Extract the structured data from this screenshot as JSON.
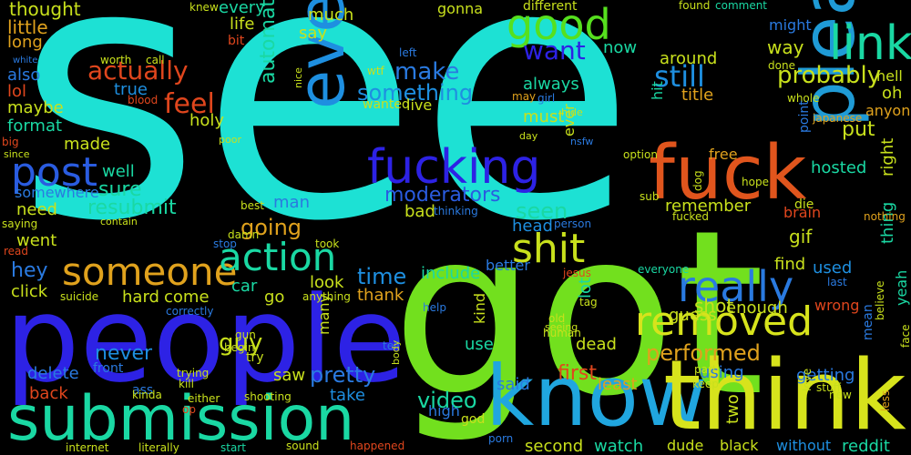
{
  "words": [
    {
      "text": "see",
      "color": "#1de1d4"
    },
    {
      "text": "got",
      "color": "#72e01e"
    },
    {
      "text": "people",
      "color": "#2d22e5"
    },
    {
      "text": "know",
      "color": "#20a6df"
    },
    {
      "text": "think",
      "color": "#d7e31c"
    },
    {
      "text": "submission",
      "color": "#1ad8a3"
    },
    {
      "text": "please",
      "color": "#1f9bd6"
    },
    {
      "text": "fuck",
      "color": "#e0551d"
    },
    {
      "text": "even",
      "color": "#1e8fe0"
    },
    {
      "text": "fucking",
      "color": "#2d22e5"
    },
    {
      "text": "good",
      "color": "#56e01e"
    },
    {
      "text": "link",
      "color": "#1ad8a3"
    },
    {
      "text": "post",
      "color": "#2a5ce0"
    },
    {
      "text": "someone",
      "color": "#e0a21d"
    },
    {
      "text": "action",
      "color": "#1ad8a3"
    },
    {
      "text": "shit",
      "color": "#c8e01c"
    },
    {
      "text": "really",
      "color": "#2a7ae0"
    },
    {
      "text": "removed",
      "color": "#d7e31c"
    },
    {
      "text": "actually",
      "color": "#e0461d"
    },
    {
      "text": "probably",
      "color": "#c8e01c"
    },
    {
      "text": "still",
      "color": "#1e8fe0"
    },
    {
      "text": "feel",
      "color": "#e0461d"
    },
    {
      "text": "make",
      "color": "#2a7ae0"
    },
    {
      "text": "want",
      "color": "#2d22e5"
    },
    {
      "text": "something",
      "color": "#1e8fe0"
    },
    {
      "text": "automatically",
      "color": "#1ad8a3"
    },
    {
      "text": "moderators",
      "color": "#2a5ce0"
    },
    {
      "text": "resubmit",
      "color": "#1ad8a3"
    },
    {
      "text": "sure",
      "color": "#1ad8a3"
    },
    {
      "text": "performed",
      "color": "#e0a21d"
    },
    {
      "text": "seen",
      "color": "#1ad8a3"
    },
    {
      "text": "going",
      "color": "#e0a21d"
    },
    {
      "text": "remember",
      "color": "#c8e01c"
    },
    {
      "text": "pretty",
      "color": "#2a7ae0"
    },
    {
      "text": "guy",
      "color": "#c8e01c"
    },
    {
      "text": "never",
      "color": "#1e8fe0"
    },
    {
      "text": "time",
      "color": "#1e8fe0"
    },
    {
      "text": "video",
      "color": "#1ad8a3"
    },
    {
      "text": "first",
      "color": "#e0461d"
    },
    {
      "text": "hey",
      "color": "#2a7ae0"
    },
    {
      "text": "around",
      "color": "#c8e01c"
    },
    {
      "text": "title",
      "color": "#e0a21d"
    },
    {
      "text": "hosted",
      "color": "#1ad8a3"
    },
    {
      "text": "put",
      "color": "#c8e01c"
    },
    {
      "text": "right",
      "color": "#c8e01c"
    },
    {
      "text": "thing",
      "color": "#1ad8a3"
    },
    {
      "text": "gif",
      "color": "#c8e01c"
    },
    {
      "text": "find",
      "color": "#c8e01c"
    },
    {
      "text": "used",
      "color": "#1e8fe0"
    },
    {
      "text": "getting",
      "color": "#2a7ae0"
    },
    {
      "text": "using",
      "color": "#2a7ae0"
    },
    {
      "text": "shot",
      "color": "#c8e01c"
    },
    {
      "text": "enough",
      "color": "#c8e01c"
    },
    {
      "text": "head",
      "color": "#1e8fe0"
    },
    {
      "text": "include",
      "color": "#1ad8a3"
    },
    {
      "text": "thank",
      "color": "#e0a21d"
    },
    {
      "text": "look",
      "color": "#c8e01c"
    },
    {
      "text": "car",
      "color": "#1ad8a3"
    },
    {
      "text": "go",
      "color": "#c8e01c"
    },
    {
      "text": "come",
      "color": "#c8e01c"
    },
    {
      "text": "hard",
      "color": "#c8e01c"
    },
    {
      "text": "said",
      "color": "#2a7ae0"
    },
    {
      "text": "least",
      "color": "#e0a21d"
    },
    {
      "text": "dead",
      "color": "#c8e01c"
    },
    {
      "text": "two",
      "color": "#c8e01c"
    },
    {
      "text": "second",
      "color": "#c8e01c"
    },
    {
      "text": "watch",
      "color": "#1ad8a3"
    },
    {
      "text": "without",
      "color": "#1e8fe0"
    },
    {
      "text": "reddit",
      "color": "#1ad8a3"
    },
    {
      "text": "thought",
      "color": "#c8e01c"
    },
    {
      "text": "every",
      "color": "#1ad8a3"
    },
    {
      "text": "life",
      "color": "#c8e01c"
    },
    {
      "text": "much",
      "color": "#c8e01c"
    },
    {
      "text": "say",
      "color": "#c8e01c"
    },
    {
      "text": "little",
      "color": "#e0a21d"
    },
    {
      "text": "long",
      "color": "#e0a21d"
    },
    {
      "text": "also",
      "color": "#2a7ae0"
    },
    {
      "text": "lol",
      "color": "#e0461d"
    },
    {
      "text": "maybe",
      "color": "#c8e01c"
    },
    {
      "text": "format",
      "color": "#1ad8a3"
    },
    {
      "text": "true",
      "color": "#1e8fe0"
    },
    {
      "text": "holy",
      "color": "#c8e01c"
    },
    {
      "text": "made",
      "color": "#c8e01c"
    },
    {
      "text": "well",
      "color": "#1ad8a3"
    },
    {
      "text": "somewhere",
      "color": "#2a7ae0"
    },
    {
      "text": "need",
      "color": "#c8e01c"
    },
    {
      "text": "went",
      "color": "#c8e01c"
    },
    {
      "text": "click",
      "color": "#c8e01c"
    },
    {
      "text": "delete",
      "color": "#2a7ae0"
    },
    {
      "text": "back",
      "color": "#e0461d"
    },
    {
      "text": "take",
      "color": "#1e8fe0"
    },
    {
      "text": "bad",
      "color": "#c8e01c"
    },
    {
      "text": "man",
      "color": "#2a7ae0"
    },
    {
      "text": "saw",
      "color": "#c8e01c"
    },
    {
      "text": "many",
      "color": "#c8e01c"
    },
    {
      "text": "must",
      "color": "#c8e01c"
    },
    {
      "text": "ever",
      "color": "#c8e01c"
    },
    {
      "text": "always",
      "color": "#1ad8a3"
    },
    {
      "text": "now",
      "color": "#1ad8a3"
    },
    {
      "text": "hit",
      "color": "#1ad8a3"
    },
    {
      "text": "way",
      "color": "#c8e01c"
    },
    {
      "text": "might",
      "color": "#2a7ae0"
    },
    {
      "text": "hell",
      "color": "#c8e01c"
    },
    {
      "text": "oh",
      "color": "#c8e01c"
    },
    {
      "text": "anyone",
      "color": "#e0a21d"
    },
    {
      "text": "free",
      "color": "#e0a21d"
    },
    {
      "text": "yeah",
      "color": "#1ad8a3"
    },
    {
      "text": "wrong",
      "color": "#e0461d"
    },
    {
      "text": "guess",
      "color": "#c8e01c"
    },
    {
      "text": "kind",
      "color": "#c8e01c"
    },
    {
      "text": "use",
      "color": "#1ad8a3"
    },
    {
      "text": "lot",
      "color": "#1ad8a3"
    },
    {
      "text": "better",
      "color": "#2a7ae0"
    },
    {
      "text": "gonna",
      "color": "#c8e01c"
    },
    {
      "text": "different",
      "color": "#c8e01c"
    },
    {
      "text": "knew",
      "color": "#c8e01c"
    },
    {
      "text": "found",
      "color": "#c8e01c"
    },
    {
      "text": "comment",
      "color": "#1ad8a3"
    },
    {
      "text": "bit",
      "color": "#e0461d"
    },
    {
      "text": "call",
      "color": "#c8e01c"
    },
    {
      "text": "worth",
      "color": "#c8e01c"
    },
    {
      "text": "white",
      "color": "#2a7ae0"
    },
    {
      "text": "blood",
      "color": "#e0461d"
    },
    {
      "text": "wanted",
      "color": "#c8e01c"
    },
    {
      "text": "live",
      "color": "#c8e01c"
    },
    {
      "text": "wtf",
      "color": "#c8e01c"
    },
    {
      "text": "girl",
      "color": "#2a7ae0"
    },
    {
      "text": "nice",
      "color": "#c8e01c"
    },
    {
      "text": "left",
      "color": "#2a7ae0"
    },
    {
      "text": "may",
      "color": "#e0a21d"
    },
    {
      "text": "done",
      "color": "#c8e01c"
    },
    {
      "text": "whole",
      "color": "#c8e01c"
    },
    {
      "text": "japanese",
      "color": "#e0a21d"
    },
    {
      "text": "point",
      "color": "#2a7ae0"
    },
    {
      "text": "option",
      "color": "#c8e01c"
    },
    {
      "text": "hope",
      "color": "#c8e01c"
    },
    {
      "text": "die",
      "color": "#c8e01c"
    },
    {
      "text": "brain",
      "color": "#e0461d"
    },
    {
      "text": "nothing",
      "color": "#e0a21d"
    },
    {
      "text": "dog",
      "color": "#c8e01c"
    },
    {
      "text": "sub",
      "color": "#c8e01c"
    },
    {
      "text": "fucked",
      "color": "#c8e01c"
    },
    {
      "text": "person",
      "color": "#2a7ae0"
    },
    {
      "text": "thinking",
      "color": "#2a7ae0"
    },
    {
      "text": "best",
      "color": "#c8e01c"
    },
    {
      "text": "damn",
      "color": "#c8e01c"
    },
    {
      "text": "stop",
      "color": "#2a7ae0"
    },
    {
      "text": "took",
      "color": "#c8e01c"
    },
    {
      "text": "since",
      "color": "#c8e01c"
    },
    {
      "text": "big",
      "color": "#e0461d"
    },
    {
      "text": "saying",
      "color": "#c8e01c"
    },
    {
      "text": "read",
      "color": "#e0461d"
    },
    {
      "text": "contain",
      "color": "#c8e01c"
    },
    {
      "text": "suicide",
      "color": "#c8e01c"
    },
    {
      "text": "correctly",
      "color": "#2a7ae0"
    },
    {
      "text": "anything",
      "color": "#c8e01c"
    },
    {
      "text": "help",
      "color": "#2a7ae0"
    },
    {
      "text": "jesus",
      "color": "#e0461d"
    },
    {
      "text": "everyone",
      "color": "#1ad8a3"
    },
    {
      "text": "last",
      "color": "#2a7ae0"
    },
    {
      "text": "believe",
      "color": "#c8e01c"
    },
    {
      "text": "face",
      "color": "#c8e01c"
    },
    {
      "text": "mean",
      "color": "#2a7ae0"
    },
    {
      "text": "less",
      "color": "#e0a21d"
    },
    {
      "text": "love",
      "color": "#c8e01c"
    },
    {
      "text": "new",
      "color": "#c8e01c"
    },
    {
      "text": "stuff",
      "color": "#c8e01c"
    },
    {
      "text": "keep",
      "color": "#c8e01c"
    },
    {
      "text": "part",
      "color": "#c8e01c"
    },
    {
      "text": "tag",
      "color": "#c8e01c"
    },
    {
      "text": "human",
      "color": "#c8e01c"
    },
    {
      "text": "seeing",
      "color": "#c8e01c"
    },
    {
      "text": "old",
      "color": "#c8e01c"
    },
    {
      "text": "tell",
      "color": "#2a7ae0"
    },
    {
      "text": "body",
      "color": "#c8e01c"
    },
    {
      "text": "high",
      "color": "#2a7ae0"
    },
    {
      "text": "god",
      "color": "#c8e01c"
    },
    {
      "text": "porn",
      "color": "#2a7ae0"
    },
    {
      "text": "dude",
      "color": "#c8e01c"
    },
    {
      "text": "black",
      "color": "#c8e01c"
    },
    {
      "text": "happened",
      "color": "#e0461d"
    },
    {
      "text": "sound",
      "color": "#c8e01c"
    },
    {
      "text": "start",
      "color": "#1ad8a3"
    },
    {
      "text": "literally",
      "color": "#c8e01c"
    },
    {
      "text": "internet",
      "color": "#c8e01c"
    },
    {
      "text": "either",
      "color": "#c8e01c"
    },
    {
      "text": "op",
      "color": "#e0461d"
    },
    {
      "text": "ass",
      "color": "#2a7ae0"
    },
    {
      "text": "kinda",
      "color": "#c8e01c"
    },
    {
      "text": "kill",
      "color": "#c8e01c"
    },
    {
      "text": "trying",
      "color": "#c8e01c"
    },
    {
      "text": "shooting",
      "color": "#c8e01c"
    },
    {
      "text": "begin",
      "color": "#c8e01c"
    },
    {
      "text": "gun",
      "color": "#c8e01c"
    },
    {
      "text": "try",
      "color": "#c8e01c"
    },
    {
      "text": "front",
      "color": "#2a7ae0"
    },
    {
      "text": "poor",
      "color": "#c8e01c"
    },
    {
      "text": "day",
      "color": "#c8e01c"
    },
    {
      "text": "hide",
      "color": "#c8e01c"
    },
    {
      "text": "nsfw",
      "color": "#2a7ae0"
    }
  ]
}
